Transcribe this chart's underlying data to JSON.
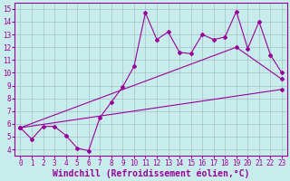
{
  "xlabel": "Windchill (Refroidissement éolien,°C)",
  "background_color": "#c8ecec",
  "line_color": "#990099",
  "xlim": [
    -0.5,
    23.5
  ],
  "ylim": [
    3.5,
    15.5
  ],
  "xticks": [
    0,
    1,
    2,
    3,
    4,
    5,
    6,
    7,
    8,
    9,
    10,
    11,
    12,
    13,
    14,
    15,
    16,
    17,
    18,
    19,
    20,
    21,
    22,
    23
  ],
  "yticks": [
    4,
    5,
    6,
    7,
    8,
    9,
    10,
    11,
    12,
    13,
    14,
    15
  ],
  "series1_x": [
    0,
    1,
    2,
    3,
    4,
    5,
    6,
    7,
    8,
    9,
    10,
    11,
    12,
    13,
    14,
    15,
    16,
    17,
    18,
    19,
    20,
    21,
    22,
    23
  ],
  "series1_y": [
    5.7,
    4.8,
    5.8,
    5.8,
    5.1,
    4.1,
    3.9,
    6.5,
    7.7,
    8.9,
    10.5,
    14.7,
    12.6,
    13.2,
    11.6,
    11.5,
    13.0,
    12.6,
    12.8,
    14.8,
    11.9,
    14.0,
    11.4,
    10.0
  ],
  "series2_x": [
    0,
    23
  ],
  "series2_y": [
    5.7,
    8.7
  ],
  "series3_x": [
    0,
    19,
    23
  ],
  "series3_y": [
    5.7,
    12.0,
    9.5
  ],
  "grid_color": "#9ab8b8",
  "tick_fontsize": 5.5,
  "xlabel_fontsize": 7,
  "marker": "D",
  "markersize": 2.0,
  "linewidth": 0.8
}
